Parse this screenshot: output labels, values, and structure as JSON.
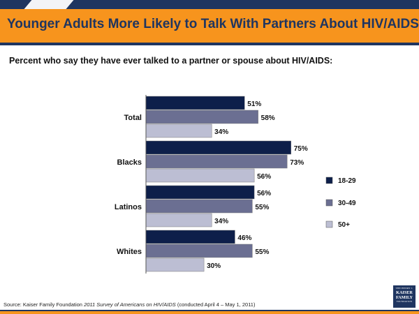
{
  "header": {
    "title": "Younger Adults More Likely to Talk With Partners About HIV/AIDS",
    "subtitle": "Percent who say they have ever talked to a partner or spouse about HIV/AIDS:"
  },
  "colors": {
    "header_orange": "#f7941d",
    "navy": "#1f3560",
    "series_18_29": "#0d1f4a",
    "series_30_49": "#6b6f92",
    "series_50_plus": "#bcbed3"
  },
  "chart_data": {
    "type": "bar",
    "orientation": "horizontal",
    "categories": [
      "Total",
      "Blacks",
      "Latinos",
      "Whites"
    ],
    "series": [
      {
        "name": "18-29",
        "values": [
          51,
          75,
          56,
          46
        ],
        "labels": [
          "51%",
          "75%",
          "56%",
          "46%"
        ],
        "color": "#0d1f4a"
      },
      {
        "name": "30-49",
        "values": [
          58,
          73,
          55,
          55
        ],
        "labels": [
          "58%",
          "73%",
          "55%",
          "55%"
        ],
        "color": "#6b6f92"
      },
      {
        "name": "50+",
        "values": [
          34,
          56,
          34,
          30
        ],
        "labels": [
          "34%",
          "56%",
          "34%",
          "30%"
        ],
        "color": "#bcbed3"
      }
    ],
    "xlim": [
      0,
      100
    ],
    "unit": "%",
    "legend_position": "right",
    "grid": false
  },
  "footer": {
    "source_prefix": "Source: Kaiser Family Foundation ",
    "source_title": "2011 Survey of Americans on HIV/AIDS",
    "source_suffix": " (conducted April 4 – May 1, 2011)",
    "logo_line1": "THE HENRY J.",
    "logo_line2a": "KAISER",
    "logo_line2b": "FAMILY",
    "logo_line3": "FOUNDATION"
  }
}
